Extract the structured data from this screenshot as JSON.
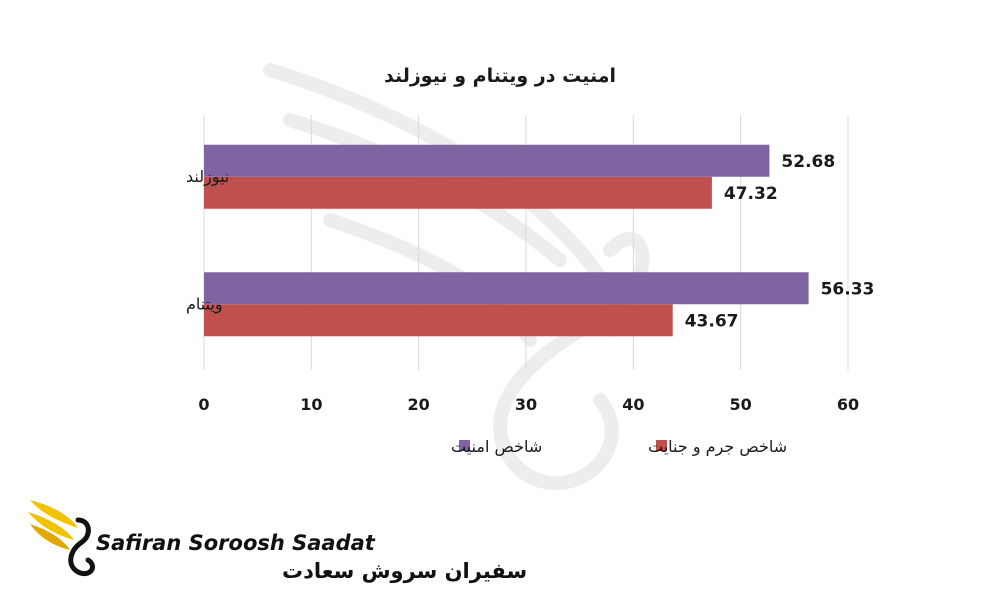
{
  "chart_data": {
    "type": "bar",
    "orientation": "horizontal",
    "title": "امنیت در ویتنام و نیوزلند",
    "categories": [
      "نیوزلند",
      "ویتنام"
    ],
    "series": [
      {
        "name": "شاخص امنیت",
        "color": "#8064a2",
        "values": [
          52.68,
          56.33
        ],
        "labels": [
          "52.68",
          "56.33"
        ]
      },
      {
        "name": "شاخص جرم و جنایت",
        "color": "#c0504d",
        "values": [
          47.32,
          43.67
        ],
        "labels": [
          "47.32",
          "43.67"
        ]
      }
    ],
    "xlim": [
      0,
      60
    ],
    "xticks": [
      "0",
      "10",
      "20",
      "30",
      "40",
      "50",
      "60"
    ],
    "grid": true,
    "legend_position": "bottom"
  },
  "logo": {
    "english": "Safiran Soroosh Saadat",
    "persian": "سفیران سروش سعادت",
    "accent_color": "#f2c200"
  }
}
